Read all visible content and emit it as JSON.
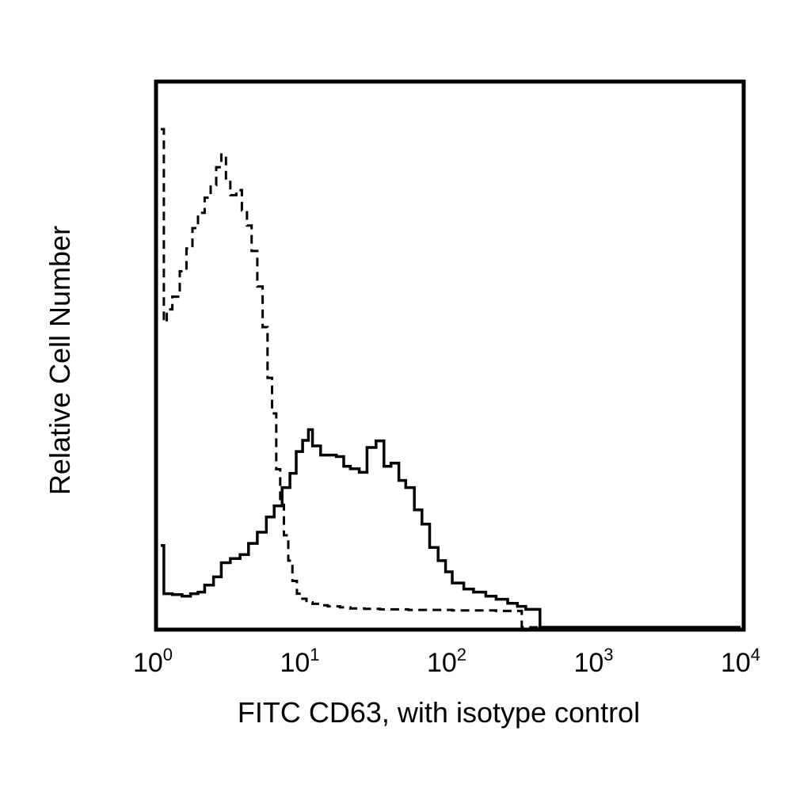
{
  "chart_data": {
    "type": "line",
    "title": "",
    "xlabel": "FITC CD63, with isotype control",
    "ylabel": "Relative Cell Number",
    "x_scale": "log",
    "xlim": [
      1,
      10000
    ],
    "ylim": [
      0,
      100
    ],
    "grid": false,
    "legend": "none",
    "x_ticks": [
      {
        "base": "10",
        "exp": "0",
        "value": 1
      },
      {
        "base": "10",
        "exp": "1",
        "value": 10
      },
      {
        "base": "10",
        "exp": "2",
        "value": 100
      },
      {
        "base": "10",
        "exp": "3",
        "value": 1000
      },
      {
        "base": "10",
        "exp": "4",
        "value": 10000
      }
    ],
    "series": [
      {
        "style": "solid",
        "color": "#000000",
        "x": [
          1.0,
          1.05,
          1.2,
          1.4,
          1.6,
          1.8,
          2.0,
          2.3,
          2.6,
          3.0,
          3.5,
          4.0,
          4.6,
          5.3,
          6.0,
          6.8,
          7.7,
          8.5,
          9.4,
          10.3,
          11.0,
          12.5,
          14.0,
          16.0,
          18.0,
          20.0,
          23.0,
          26.0,
          30.0,
          34.0,
          38.0,
          43.0,
          48.0,
          55.0,
          62.0,
          70.0,
          80.0,
          90.0,
          100.0,
          120.0,
          140.0,
          170.0,
          200.0,
          240.0,
          280.0,
          320.0,
          400.0,
          600.0,
          1000.0,
          10000.0
        ],
        "y": [
          13.0,
          3.5,
          3.3,
          3.0,
          3.5,
          3.8,
          5.2,
          6.8,
          9.6,
          10.4,
          11.2,
          13.4,
          15.6,
          18.6,
          20.8,
          24.4,
          27.2,
          31.5,
          33.7,
          35.8,
          32.6,
          30.8,
          30.8,
          30.5,
          28.6,
          28.1,
          27.4,
          32.3,
          33.6,
          28.6,
          29.2,
          25.8,
          24.4,
          20.0,
          17.2,
          12.6,
          10.0,
          7.8,
          5.6,
          4.4,
          3.8,
          3.0,
          2.4,
          1.6,
          1.0,
          0.4,
          0.0,
          0.0,
          0.0,
          0.0
        ]
      },
      {
        "style": "dashed",
        "color": "#000000",
        "x": [
          1.0,
          1.05,
          1.1,
          1.2,
          1.35,
          1.5,
          1.65,
          1.8,
          2.0,
          2.2,
          2.4,
          2.6,
          2.8,
          3.0,
          3.3,
          3.6,
          3.9,
          4.2,
          4.6,
          5.0,
          5.4,
          5.8,
          6.2,
          6.6,
          7.0,
          7.5,
          8.0,
          8.6,
          9.2,
          10.0,
          11.0,
          12.5,
          14.0,
          17.0,
          20.0,
          25.0,
          32.0,
          40.0,
          50.0,
          70.0,
          100.0,
          200.0,
          300.0,
          1000.0,
          10000.0
        ],
        "y": [
          95.0,
          57.0,
          59.5,
          62.0,
          67.0,
          71.5,
          75.5,
          78.5,
          81.5,
          84.0,
          87.5,
          90.0,
          85.0,
          82.0,
          83.0,
          79.0,
          76.0,
          71.0,
          64.0,
          56.0,
          46.0,
          39.0,
          28.0,
          21.0,
          15.0,
          10.0,
          6.0,
          3.5,
          2.5,
          1.8,
          1.5,
          1.2,
          1.0,
          0.8,
          0.6,
          0.5,
          0.4,
          0.4,
          0.3,
          0.3,
          0.2,
          0.1,
          0.0,
          0.0,
          0.0
        ]
      }
    ]
  }
}
